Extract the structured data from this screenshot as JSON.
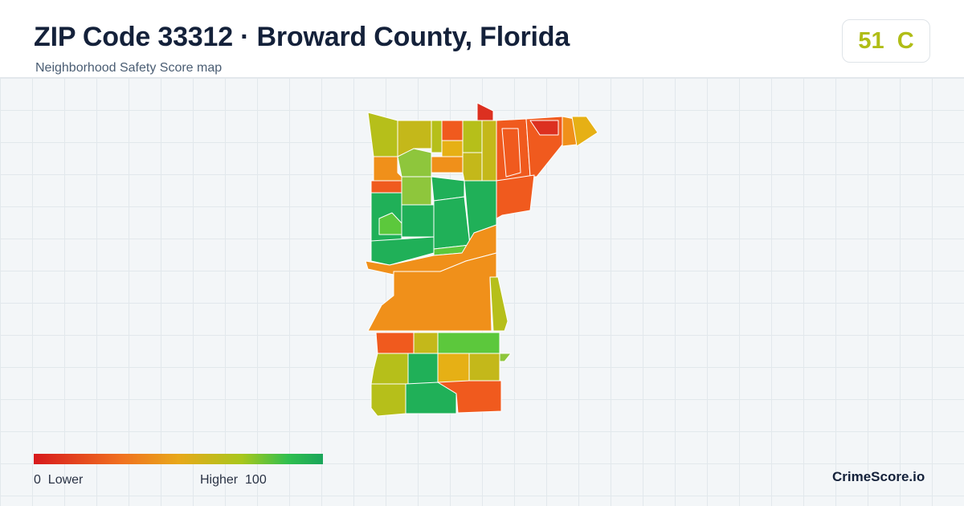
{
  "header": {
    "title": "ZIP Code 33312 · Broward County, Florida",
    "subtitle": "Neighborhood Safety Score map"
  },
  "score": {
    "value": "51",
    "grade": "C",
    "display": "51  C",
    "color": "#b0bd16"
  },
  "map": {
    "description_colors": {
      "red": "#dc3020",
      "red_orange": "#f05a1e",
      "orange": "#f0901a",
      "amber": "#e6b015",
      "yellow_green": "#b6bf1a",
      "light_green": "#8ec63c",
      "green": "#5cc83c",
      "dark_green": "#20b058"
    }
  },
  "legend": {
    "low_label": "0  Lower",
    "high_label": "Higher  100",
    "scale_min": 0,
    "scale_max": 100
  },
  "brand": "CrimeScore.io"
}
